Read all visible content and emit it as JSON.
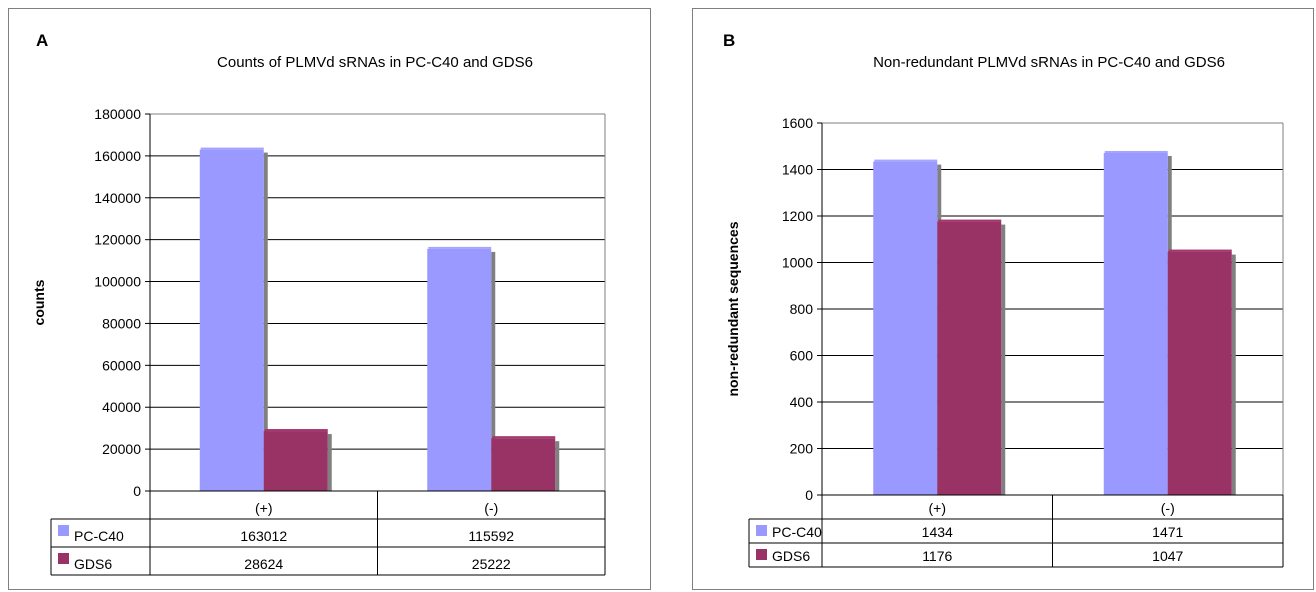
{
  "chart_data": [
    {
      "panel_letter": "A",
      "type": "bar",
      "title": "Counts of PLMVd sRNAs in PC-C40 and GDS6",
      "xlabel": "",
      "ylabel": "counts",
      "categories": [
        "(+)",
        "(-)"
      ],
      "series": [
        {
          "name": "PC-C40",
          "color": "#9999ff",
          "values": [
            163012,
            115592
          ],
          "labels": [
            "163012",
            "115592"
          ]
        },
        {
          "name": "GDS6",
          "color": "#993366",
          "values": [
            28624,
            25222
          ],
          "labels": [
            "28624",
            "25222"
          ]
        }
      ],
      "ylim": [
        0,
        180000
      ],
      "yticks": [
        0,
        20000,
        40000,
        60000,
        80000,
        100000,
        120000,
        140000,
        160000,
        180000
      ],
      "grid": true,
      "legend": "data-table"
    },
    {
      "panel_letter": "B",
      "type": "bar",
      "title": "Non-redundant PLMVd sRNAs in PC-C40 and GDS6",
      "xlabel": "",
      "ylabel": "non-redundant sequences",
      "categories": [
        "(+)",
        "(-)"
      ],
      "series": [
        {
          "name": "PC-C40",
          "color": "#9999ff",
          "values": [
            1434,
            1471
          ],
          "labels": [
            "1434",
            "1471"
          ]
        },
        {
          "name": "GDS6",
          "color": "#993366",
          "values": [
            1176,
            1047
          ],
          "labels": [
            "1176",
            "1047"
          ]
        }
      ],
      "ylim": [
        0,
        1600
      ],
      "yticks": [
        0,
        200,
        400,
        600,
        800,
        1000,
        1200,
        1400,
        1600
      ],
      "grid": true,
      "legend": "data-table"
    }
  ]
}
